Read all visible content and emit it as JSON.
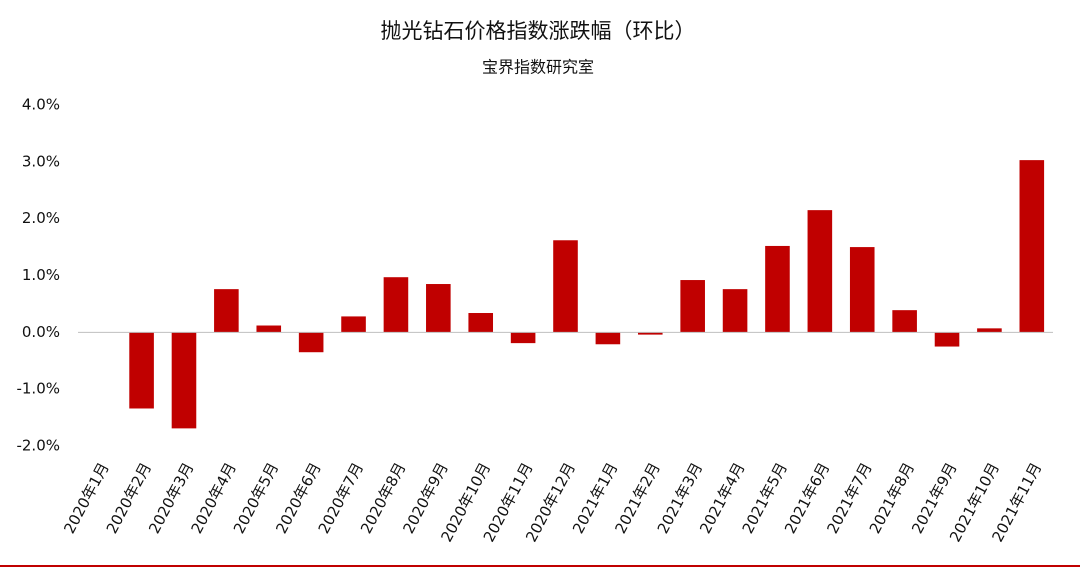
{
  "chart_data": {
    "type": "bar",
    "title": "抛光钻石价格指数涨跌幅（环比）",
    "subtitle": "宝界指数研究室",
    "categories": [
      "2020年1月",
      "2020年2月",
      "2020年3月",
      "2020年4月",
      "2020年5月",
      "2020年6月",
      "2020年7月",
      "2020年8月",
      "2020年9月",
      "2020年10月",
      "2020年11月",
      "2020年12月",
      "2021年1月",
      "2021年2月",
      "2021年3月",
      "2021年4月",
      "2021年5月",
      "2021年6月",
      "2021年7月",
      "2021年8月",
      "2021年9月",
      "2021年10月",
      "2021年11月"
    ],
    "values": [
      0,
      -1.34,
      -1.69,
      0.76,
      0.12,
      -0.35,
      0.28,
      0.97,
      0.85,
      0.34,
      -0.19,
      1.62,
      -0.21,
      -0.04,
      0.92,
      0.76,
      1.52,
      2.15,
      1.5,
      0.39,
      -0.25,
      0.07,
      3.03
    ],
    "color": "#c00000",
    "ylim": [
      -2,
      4
    ],
    "yticks": [
      {
        "value": -2,
        "label": "-2.0%"
      },
      {
        "value": -1,
        "label": "-1.0%"
      },
      {
        "value": 0,
        "label": "0.0%"
      },
      {
        "value": 1,
        "label": "1.0%"
      },
      {
        "value": 2,
        "label": "2.0%"
      },
      {
        "value": 3,
        "label": "3.0%"
      },
      {
        "value": 4,
        "label": "4.0%"
      }
    ],
    "grid": false
  }
}
